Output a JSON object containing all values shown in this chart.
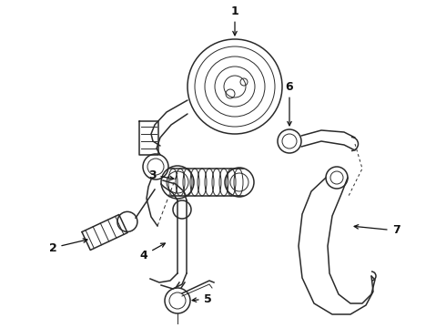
{
  "background_color": "#ffffff",
  "line_color": "#2a2a2a",
  "label_color": "#111111",
  "label_fontsize": 9,
  "figsize": [
    4.9,
    3.6
  ],
  "dpi": 100
}
